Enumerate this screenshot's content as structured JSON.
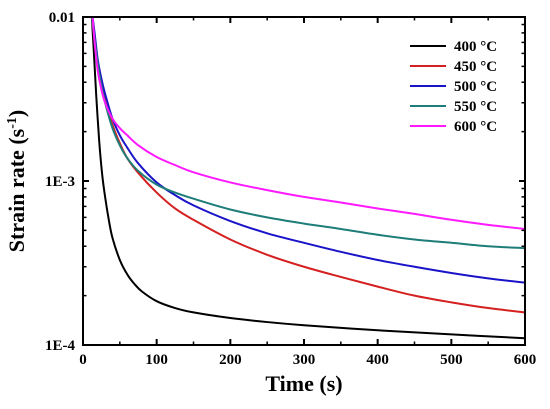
{
  "chart_data": {
    "type": "line",
    "title": "",
    "xlabel": "Time (s)",
    "ylabel_main": "Strain rate (s",
    "ylabel_sup": "-1",
    "ylabel_close": ")",
    "xlim": [
      0,
      600
    ],
    "ylim": [
      0.0001,
      0.01
    ],
    "yscale": "log",
    "grid": false,
    "legend_position": "top-right",
    "x_ticks": [
      0,
      100,
      200,
      300,
      400,
      500,
      600
    ],
    "x_tick_labels": [
      "0",
      "100",
      "200",
      "300",
      "400",
      "500",
      "600"
    ],
    "y_ticks": [
      0.0001,
      0.001,
      0.01
    ],
    "y_tick_labels": [
      "1E-4",
      "1E-3",
      "0.01"
    ],
    "series": [
      {
        "name": "400 °C",
        "color": "#000000",
        "x": [
          12,
          15,
          18,
          22,
          26,
          30,
          35,
          40,
          50,
          60,
          70,
          80,
          100,
          125,
          150,
          200,
          250,
          300,
          400,
          500,
          600
        ],
        "y": [
          0.01,
          0.0058,
          0.0033,
          0.00175,
          0.0011,
          0.0008,
          0.00058,
          0.00045,
          0.00033,
          0.00027,
          0.000235,
          0.000212,
          0.000185,
          0.000168,
          0.000158,
          0.000146,
          0.000138,
          0.000132,
          0.000123,
          0.000116,
          0.00011
        ]
      },
      {
        "name": "450 °C",
        "color": "#d42020",
        "x": [
          12,
          15,
          20,
          25,
          30,
          40,
          50,
          60,
          75,
          100,
          125,
          150,
          200,
          250,
          300,
          350,
          400,
          450,
          500,
          550,
          600
        ],
        "y": [
          0.01,
          0.0078,
          0.0052,
          0.0039,
          0.0031,
          0.0022,
          0.0017,
          0.00138,
          0.00112,
          0.00085,
          0.00068,
          0.00058,
          0.00044,
          0.000355,
          0.0003,
          0.00026,
          0.000227,
          0.0002,
          0.000182,
          0.000168,
          0.000158
        ]
      },
      {
        "name": "500 °C",
        "color": "#1a14c8",
        "x": [
          13,
          16,
          20,
          25,
          30,
          40,
          50,
          60,
          75,
          100,
          125,
          150,
          200,
          250,
          300,
          350,
          400,
          450,
          500,
          550,
          600
        ],
        "y": [
          0.01,
          0.0078,
          0.0055,
          0.0042,
          0.0034,
          0.0024,
          0.0019,
          0.0016,
          0.00128,
          0.00098,
          0.00082,
          0.00071,
          0.00057,
          0.00048,
          0.00042,
          0.00037,
          0.00033,
          0.0003,
          0.000275,
          0.000255,
          0.00024
        ]
      },
      {
        "name": "550 °C",
        "color": "#1e7d78",
        "x": [
          12,
          15,
          20,
          25,
          30,
          40,
          50,
          60,
          75,
          100,
          125,
          150,
          200,
          250,
          300,
          350,
          400,
          450,
          500,
          550,
          600
        ],
        "y": [
          0.01,
          0.0078,
          0.0052,
          0.0038,
          0.003,
          0.0021,
          0.00165,
          0.00138,
          0.00115,
          0.00095,
          0.00085,
          0.00078,
          0.00067,
          0.0006,
          0.00055,
          0.00051,
          0.00047,
          0.00044,
          0.00042,
          0.0004,
          0.00039
        ]
      },
      {
        "name": "600 °C",
        "color": "#ff1aff",
        "x": [
          13,
          16,
          20,
          25,
          30,
          40,
          50,
          60,
          75,
          100,
          125,
          150,
          200,
          250,
          300,
          350,
          400,
          450,
          500,
          550,
          600
        ],
        "y": [
          0.01,
          0.0068,
          0.0047,
          0.0036,
          0.003,
          0.0024,
          0.0021,
          0.0019,
          0.00165,
          0.0014,
          0.00125,
          0.00113,
          0.00098,
          0.00088,
          0.0008,
          0.00074,
          0.00068,
          0.00063,
          0.00058,
          0.00054,
          0.00051
        ]
      }
    ]
  }
}
